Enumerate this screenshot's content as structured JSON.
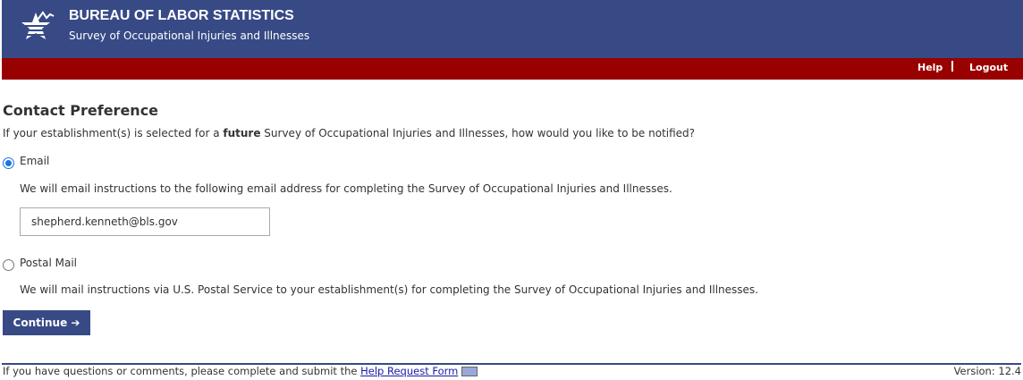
{
  "header": {
    "title": "BUREAU OF LABOR STATISTICS",
    "subtitle": "Survey of Occupational Injuries and Illnesses"
  },
  "nav": {
    "help": "Help",
    "logout": "Logout"
  },
  "main": {
    "heading": "Contact Preference",
    "question_pre": "If your establishment(s) is selected for a ",
    "question_bold": "future",
    "question_post": " Survey of Occupational Injuries and Illnesses, how would you like to be notified?",
    "options": [
      {
        "label": "Email",
        "selected": true,
        "description": "We will email instructions to the following email address for completing the Survey of Occupational Injuries and Illnesses.",
        "value": "shepherd.kenneth@bls.gov"
      },
      {
        "label": "Postal Mail",
        "selected": false,
        "description": "We will mail instructions via U.S. Postal Service to your establishment(s) for completing the Survey of Occupational Injuries and Illnesses."
      }
    ],
    "continue_label": "Continue ➔"
  },
  "footer": {
    "text": "If you have questions or comments, please complete and submit the ",
    "link": "Help Request Form",
    "version": "Version: 12.4"
  }
}
